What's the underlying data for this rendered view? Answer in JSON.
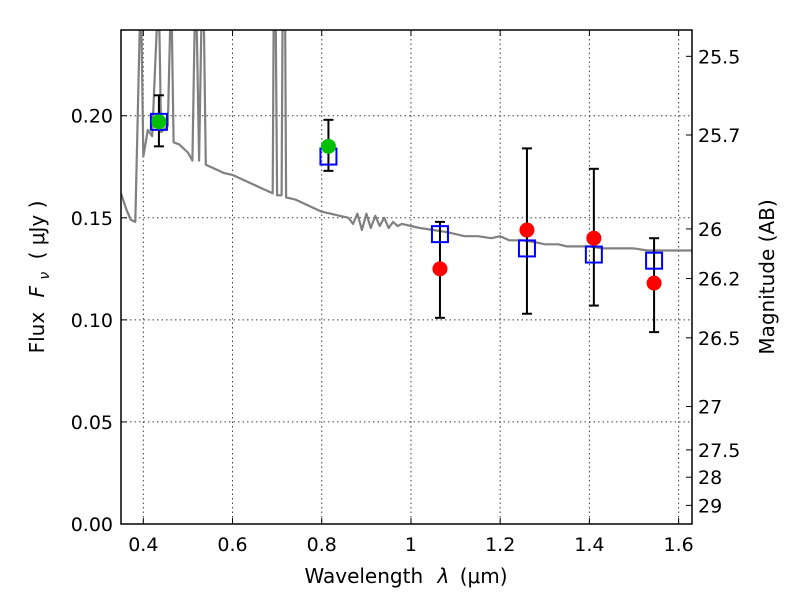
{
  "chart_data": {
    "type": "scatter",
    "title": "",
    "xlabel": "Wavelength",
    "xlabel_symbol": "λ",
    "xlabel_unit": "(μm)",
    "ylabel": "Flux",
    "ylabel_symbol": "F",
    "ylabel_subscript": "ν",
    "ylabel_unit": "( μJy )",
    "y2label": "Magnitude (AB)",
    "xlim": [
      0.35,
      1.63
    ],
    "ylim": [
      0.0,
      0.242
    ],
    "grid": true,
    "x_ticks": [
      {
        "value": 0.4,
        "label": "0.4"
      },
      {
        "value": 0.6,
        "label": "0.6"
      },
      {
        "value": 0.8,
        "label": "0.8"
      },
      {
        "value": 1.0,
        "label": "1"
      },
      {
        "value": 1.2,
        "label": "1.2"
      },
      {
        "value": 1.4,
        "label": "1.4"
      },
      {
        "value": 1.6,
        "label": "1.6"
      }
    ],
    "y_ticks": [
      {
        "value": 0.0,
        "label": "0.00"
      },
      {
        "value": 0.05,
        "label": "0.05"
      },
      {
        "value": 0.1,
        "label": "0.10"
      },
      {
        "value": 0.15,
        "label": "0.15"
      },
      {
        "value": 0.2,
        "label": "0.20"
      }
    ],
    "mag_ticks": [
      {
        "value": 25.5,
        "label": "25.5"
      },
      {
        "value": 25.7,
        "label": "25.7"
      },
      {
        "value": 26.0,
        "label": "26"
      },
      {
        "value": 26.2,
        "label": "26.2"
      },
      {
        "value": 26.5,
        "label": "26.5"
      },
      {
        "value": 27.0,
        "label": "27"
      },
      {
        "value": 27.5,
        "label": "27.5"
      },
      {
        "value": 28.0,
        "label": "28"
      },
      {
        "value": 29.0,
        "label": "29"
      }
    ],
    "model_spectrum": {
      "color": "#808080",
      "points": [
        [
          0.35,
          0.162
        ],
        [
          0.362,
          0.154
        ],
        [
          0.372,
          0.149
        ],
        [
          0.382,
          0.148
        ],
        [
          0.392,
          0.242
        ],
        [
          0.396,
          0.242
        ],
        [
          0.4,
          0.18
        ],
        [
          0.41,
          0.193
        ],
        [
          0.42,
          0.19
        ],
        [
          0.43,
          0.242
        ],
        [
          0.436,
          0.242
        ],
        [
          0.44,
          0.192
        ],
        [
          0.455,
          0.195
        ],
        [
          0.46,
          0.242
        ],
        [
          0.464,
          0.242
        ],
        [
          0.468,
          0.187
        ],
        [
          0.48,
          0.186
        ],
        [
          0.5,
          0.182
        ],
        [
          0.51,
          0.178
        ],
        [
          0.515,
          0.242
        ],
        [
          0.52,
          0.242
        ],
        [
          0.525,
          0.178
        ],
        [
          0.53,
          0.242
        ],
        [
          0.536,
          0.242
        ],
        [
          0.54,
          0.176
        ],
        [
          0.56,
          0.174
        ],
        [
          0.58,
          0.172
        ],
        [
          0.6,
          0.171
        ],
        [
          0.62,
          0.169
        ],
        [
          0.64,
          0.167
        ],
        [
          0.66,
          0.165
        ],
        [
          0.68,
          0.163
        ],
        [
          0.69,
          0.162
        ],
        [
          0.692,
          0.242
        ],
        [
          0.697,
          0.242
        ],
        [
          0.7,
          0.161
        ],
        [
          0.71,
          0.161
        ],
        [
          0.712,
          0.242
        ],
        [
          0.718,
          0.242
        ],
        [
          0.72,
          0.16
        ],
        [
          0.74,
          0.159
        ],
        [
          0.76,
          0.157
        ],
        [
          0.78,
          0.155
        ],
        [
          0.8,
          0.153
        ],
        [
          0.82,
          0.152
        ],
        [
          0.84,
          0.151
        ],
        [
          0.86,
          0.15
        ],
        [
          0.87,
          0.147
        ],
        [
          0.88,
          0.152
        ],
        [
          0.89,
          0.144
        ],
        [
          0.9,
          0.152
        ],
        [
          0.91,
          0.145
        ],
        [
          0.92,
          0.151
        ],
        [
          0.93,
          0.146
        ],
        [
          0.94,
          0.15
        ],
        [
          0.95,
          0.145
        ],
        [
          0.96,
          0.148
        ],
        [
          0.97,
          0.146
        ],
        [
          0.98,
          0.147
        ],
        [
          1.0,
          0.146
        ],
        [
          1.02,
          0.145
        ],
        [
          1.05,
          0.144
        ],
        [
          1.08,
          0.143
        ],
        [
          1.1,
          0.142
        ],
        [
          1.12,
          0.141
        ],
        [
          1.15,
          0.141
        ],
        [
          1.18,
          0.14
        ],
        [
          1.2,
          0.141
        ],
        [
          1.22,
          0.139
        ],
        [
          1.25,
          0.139
        ],
        [
          1.28,
          0.138
        ],
        [
          1.3,
          0.137
        ],
        [
          1.33,
          0.137
        ],
        [
          1.35,
          0.136
        ],
        [
          1.38,
          0.136
        ],
        [
          1.4,
          0.136
        ],
        [
          1.43,
          0.135
        ],
        [
          1.45,
          0.135
        ],
        [
          1.48,
          0.135
        ],
        [
          1.5,
          0.135
        ],
        [
          1.53,
          0.134
        ],
        [
          1.56,
          0.134
        ],
        [
          1.6,
          0.134
        ],
        [
          1.63,
          0.134
        ]
      ]
    },
    "model_fluxes": {
      "marker": "open-square",
      "color": "#0000ff",
      "points": [
        {
          "x": 0.435,
          "y": 0.197
        },
        {
          "x": 0.815,
          "y": 0.18
        },
        {
          "x": 1.065,
          "y": 0.142
        },
        {
          "x": 1.26,
          "y": 0.135
        },
        {
          "x": 1.41,
          "y": 0.132
        },
        {
          "x": 1.545,
          "y": 0.129
        }
      ]
    },
    "observed_fluxes": [
      {
        "x": 0.435,
        "y": 0.197,
        "err_low": 0.185,
        "err_high": 0.21,
        "color": "#00c000"
      },
      {
        "x": 0.815,
        "y": 0.185,
        "err_low": 0.173,
        "err_high": 0.198,
        "color": "#00c000"
      },
      {
        "x": 1.065,
        "y": 0.125,
        "err_low": 0.101,
        "err_high": 0.148,
        "color": "#ff0000"
      },
      {
        "x": 1.26,
        "y": 0.144,
        "err_low": 0.103,
        "err_high": 0.184,
        "color": "#ff0000"
      },
      {
        "x": 1.41,
        "y": 0.14,
        "err_low": 0.107,
        "err_high": 0.174,
        "color": "#ff0000"
      },
      {
        "x": 1.545,
        "y": 0.118,
        "err_low": 0.094,
        "err_high": 0.14,
        "color": "#ff0000"
      }
    ]
  }
}
